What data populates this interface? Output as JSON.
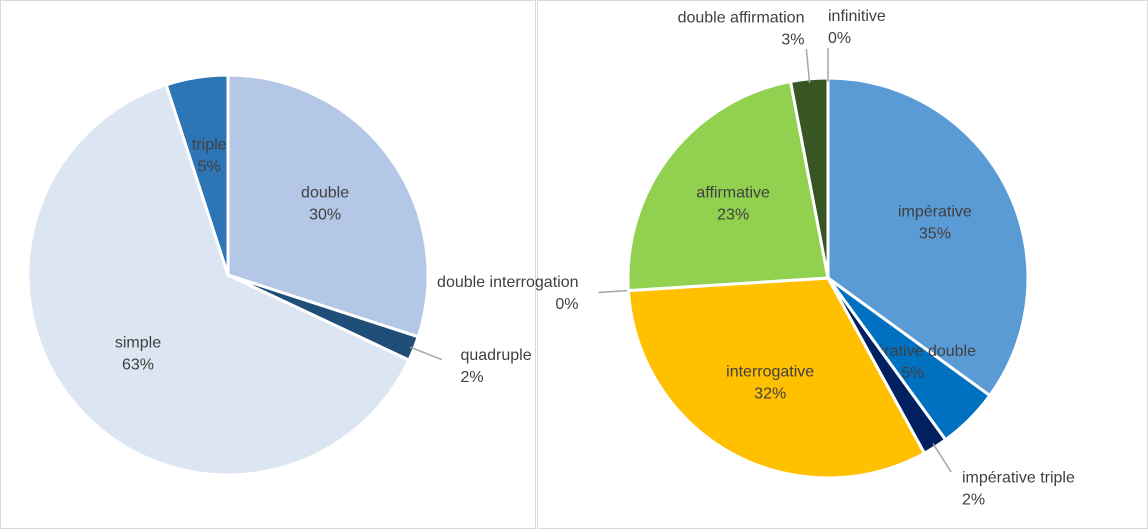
{
  "chart_data": [
    {
      "type": "pie",
      "categories": [
        "double",
        "quadruple",
        "simple",
        "triple"
      ],
      "values": [
        30,
        2,
        63,
        5
      ],
      "value_labels": [
        "30%",
        "2%",
        "63%",
        "5%"
      ],
      "colors": [
        "#b4c7e7",
        "#1f4e79",
        "#dce6f2",
        "#2e75b6"
      ]
    },
    {
      "type": "pie",
      "categories": [
        "impérative",
        "impérative double",
        "impérative triple",
        "interrogative",
        "double interrogation",
        "affirmative",
        "double affirmation",
        "infinitive"
      ],
      "values": [
        35,
        5,
        2,
        32,
        0,
        23,
        3,
        0
      ],
      "value_labels": [
        "35%",
        "5%",
        "2%",
        "32%",
        "0%",
        "23%",
        "3%",
        "0%"
      ],
      "colors": [
        "#5b9bd5",
        "#0070c0",
        "#002060",
        "#ffc000",
        "#ffffff",
        "#92d050",
        "#375623",
        "#7f7f7f"
      ]
    }
  ]
}
